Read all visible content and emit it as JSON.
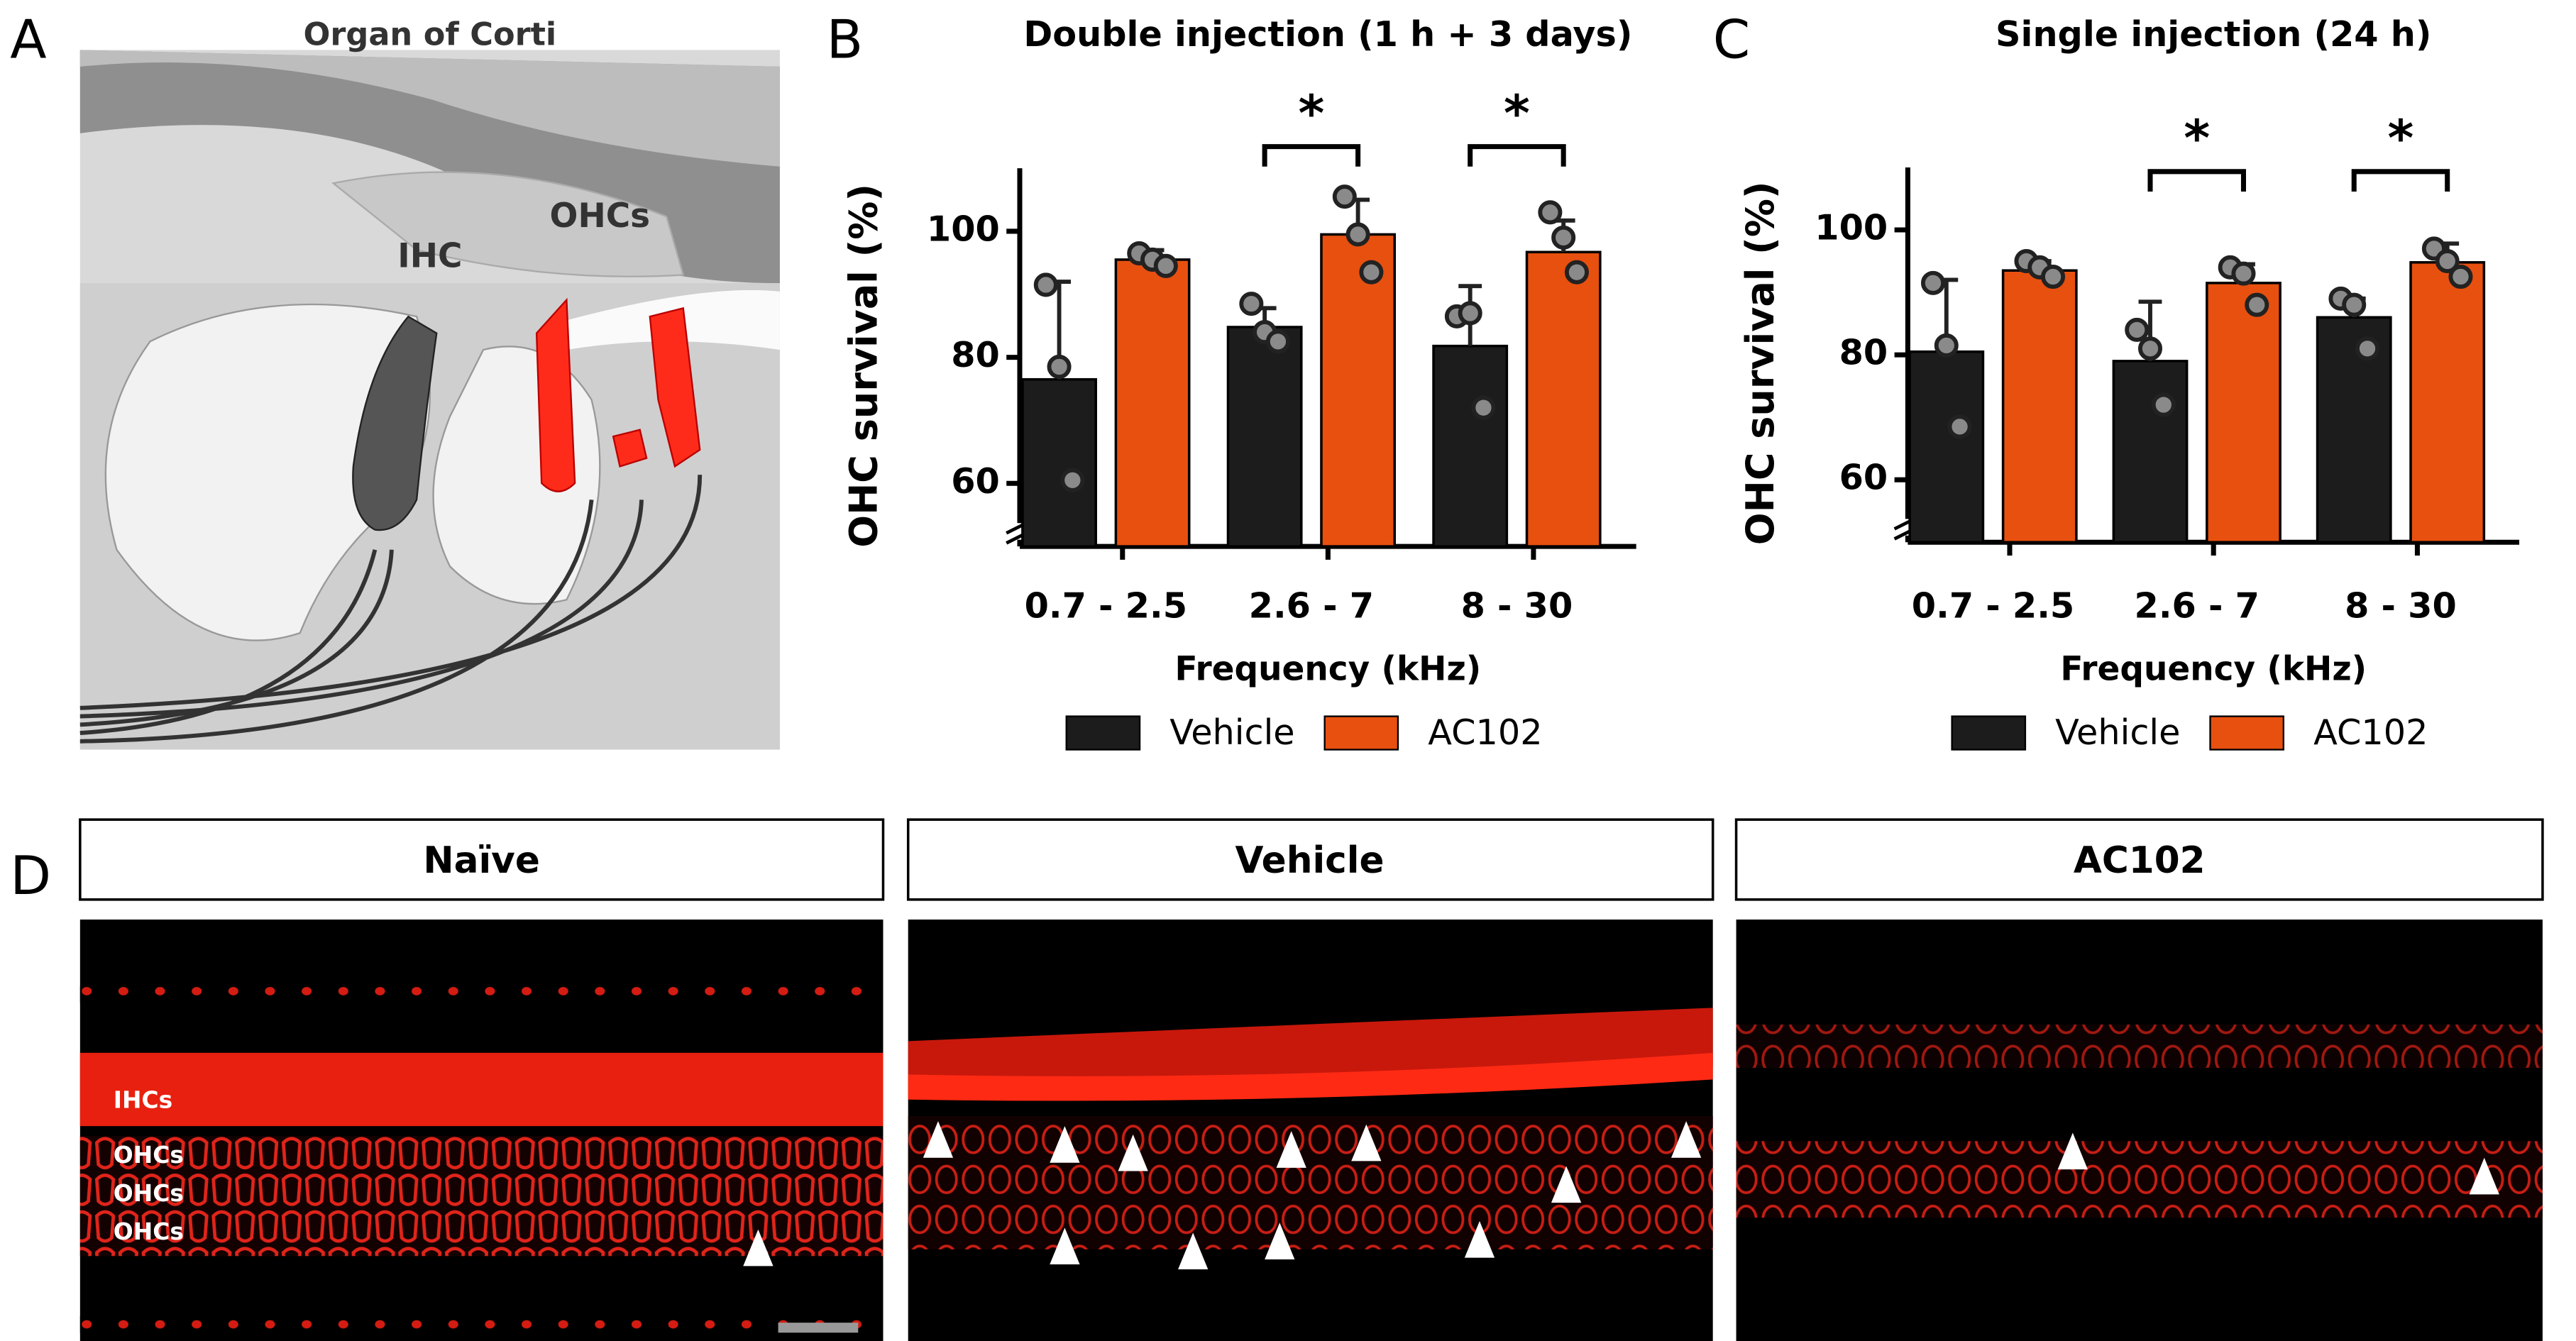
{
  "panel_labels": [
    "A",
    "B",
    "C",
    "D"
  ],
  "diagram": {
    "title": "Organ of Corti",
    "labels": [
      "IHC",
      "OHCs"
    ]
  },
  "micrographs": [
    {
      "title": "Naïve",
      "labels": [
        "IHCs",
        "OHCs",
        "OHCs",
        "OHCs"
      ]
    },
    {
      "title": "Vehicle"
    },
    {
      "title": "AC102"
    }
  ],
  "chart_data": [
    {
      "type": "bar",
      "title": "Double injection (1 h + 3 days)",
      "y_label": "OHC survival (%)",
      "x_label": "Frequency (kHz)",
      "categories": [
        "0.7 - 2.5",
        "2.6 - 7",
        "8 - 30"
      ],
      "ylim": [
        50,
        110
      ],
      "yticks": [
        60,
        80,
        100
      ],
      "legend": "bottom",
      "significance": [
        null,
        "*",
        "*"
      ],
      "series": [
        {
          "name": "Vehicle",
          "color": "#1c1c1c",
          "values": [
            76.5,
            84.8,
            81.8
          ],
          "errors": [
            15.5,
            3,
            9.5
          ],
          "points": [
            [
              91.5,
              78.5,
              60.5
            ],
            [
              88.5,
              84,
              82.5
            ],
            [
              86.5,
              87,
              72
            ]
          ]
        },
        {
          "name": "AC102",
          "color": "#e8500f",
          "values": [
            95.5,
            99.5,
            96.7
          ],
          "errors": [
            1.5,
            5.5,
            5
          ],
          "points": [
            [
              96.5,
              95.5,
              94.5
            ],
            [
              105.5,
              99.5,
              93.5
            ],
            [
              103,
              99,
              93.5
            ]
          ]
        }
      ]
    },
    {
      "type": "bar",
      "title": "Single injection (24 h)",
      "y_label": "OHC survival (%)",
      "x_label": "Frequency (kHz)",
      "categories": [
        "0.7 - 2.5",
        "2.6 - 7",
        "8 - 30"
      ],
      "ylim": [
        50,
        110
      ],
      "yticks": [
        60,
        80,
        100
      ],
      "legend": "bottom",
      "significance": [
        null,
        "*",
        "*"
      ],
      "series": [
        {
          "name": "Vehicle",
          "color": "#1c1c1c",
          "values": [
            80.5,
            79,
            86
          ],
          "errors": [
            11.5,
            9.5,
            3
          ],
          "points": [
            [
              91.5,
              81.5,
              68.5
            ],
            [
              84,
              81,
              72
            ],
            [
              89,
              88,
              81
            ]
          ]
        },
        {
          "name": "AC102",
          "color": "#e8500f",
          "values": [
            93.5,
            91.5,
            94.8
          ],
          "errors": [
            1.5,
            3,
            3
          ],
          "points": [
            [
              95,
              94,
              92.5
            ],
            [
              94,
              93,
              88
            ],
            [
              97,
              95,
              92.5
            ]
          ]
        }
      ]
    }
  ]
}
